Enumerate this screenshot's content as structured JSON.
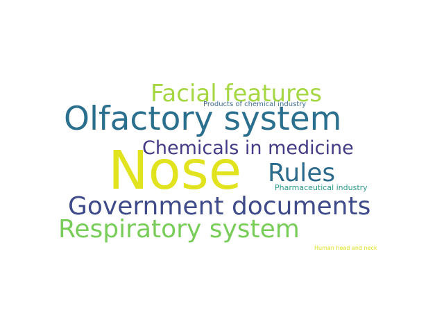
{
  "words": [
    {
      "text": "Facial features",
      "color": "#a5d743"
    },
    {
      "text": "Products of chemical industry",
      "color": "#3e6c8e"
    },
    {
      "text": "Olfactory system",
      "color": "#2b6f8e"
    },
    {
      "text": "Chemicals in medicine",
      "color": "#433b85"
    },
    {
      "text": "Nose",
      "color": "#e2e31f"
    },
    {
      "text": "Rules",
      "color": "#2c6a8c"
    },
    {
      "text": "Pharmaceutical industry",
      "color": "#2a9a8b"
    },
    {
      "text": "Government documents",
      "color": "#3e4a89"
    },
    {
      "text": "Respiratory system",
      "color": "#78cd59"
    },
    {
      "text": "Human head and neck",
      "color": "#dde11b"
    }
  ]
}
